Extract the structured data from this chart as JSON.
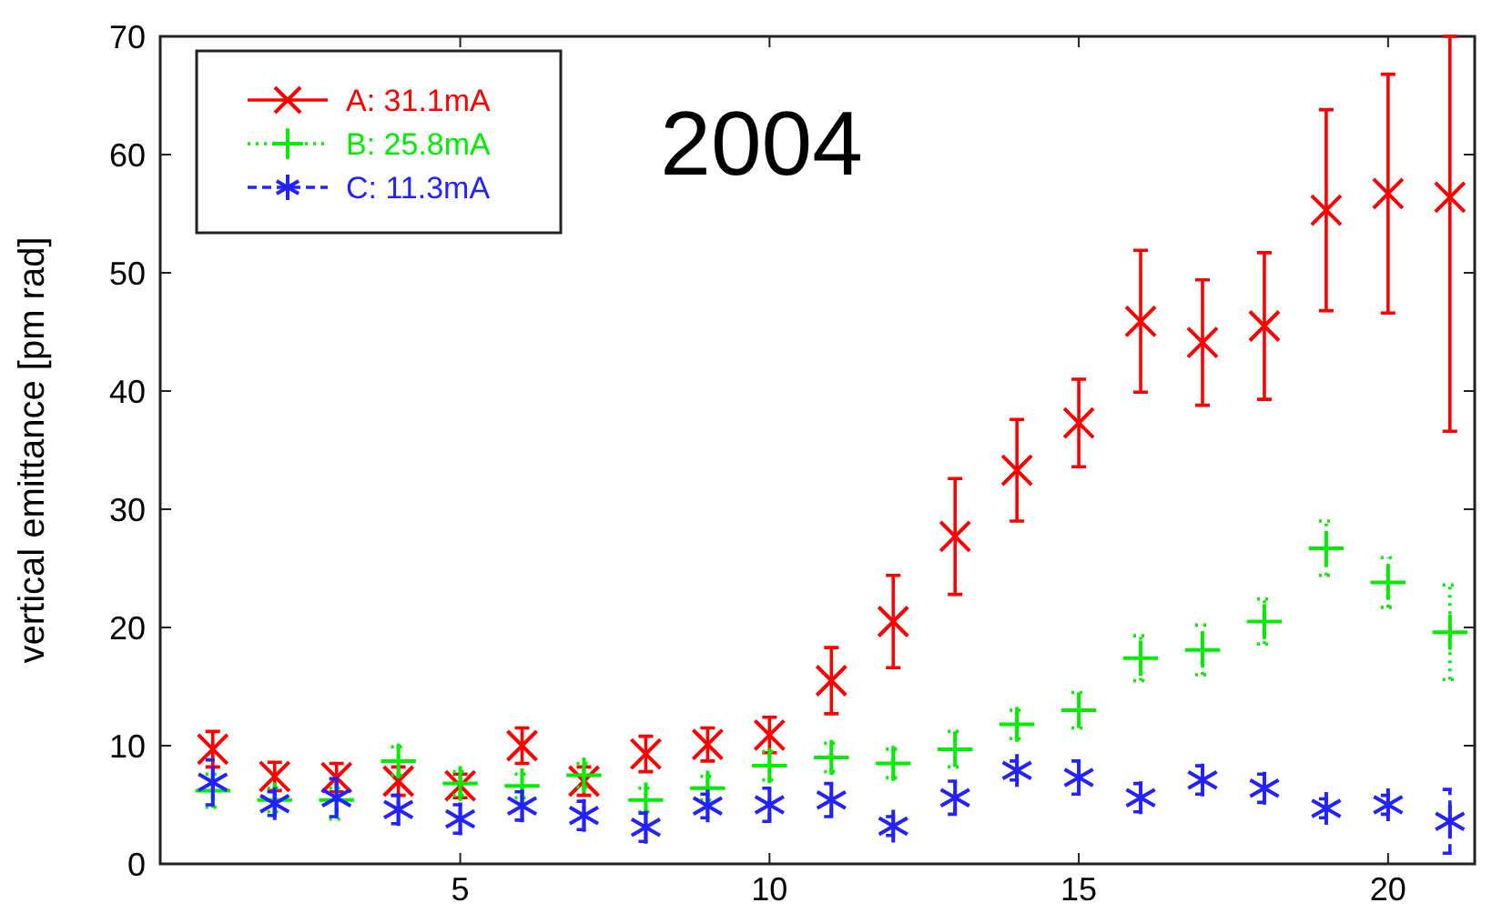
{
  "chart_data": {
    "type": "scatter",
    "title": "2004",
    "ylabel": "vertical emittance [pm rad]",
    "x": [
      1,
      2,
      3,
      4,
      5,
      6,
      7,
      8,
      9,
      10,
      11,
      12,
      13,
      14,
      15,
      16,
      17,
      18,
      19,
      20,
      21
    ],
    "xlim": [
      0.15,
      21.4
    ],
    "xticks": [
      5,
      10,
      15,
      20
    ],
    "ylim": [
      0,
      70
    ],
    "yticks": [
      0,
      10,
      20,
      30,
      40,
      50,
      60,
      70
    ],
    "grid": false,
    "legend": "top left",
    "series": [
      {
        "name": "A: 31.1mA",
        "color": "#ff0000",
        "marker": "cross",
        "line_style": "solid",
        "values": [
          9.7,
          7.4,
          7.3,
          7.0,
          6.6,
          10.0,
          7.0,
          9.3,
          10.1,
          10.9,
          15.5,
          20.5,
          27.7,
          33.3,
          37.3,
          45.9,
          44.1,
          45.5,
          55.3,
          56.7,
          56.4
        ],
        "errors": [
          1.5,
          1.2,
          1.2,
          1.2,
          1.0,
          1.5,
          1.2,
          1.5,
          1.4,
          1.5,
          2.8,
          3.9,
          4.9,
          4.3,
          3.7,
          6.0,
          5.3,
          6.2,
          8.5,
          10.1,
          [
            36.6,
            70
          ]
        ]
      },
      {
        "name": "B: 25.8mA",
        "color": "#00ee00",
        "marker": "plus",
        "line_style": "dotted",
        "values": [
          6.2,
          5.4,
          5.4,
          8.7,
          6.8,
          6.6,
          7.5,
          5.4,
          6.4,
          8.3,
          9.0,
          8.5,
          9.7,
          11.8,
          13.0,
          17.4,
          18.1,
          20.5,
          26.7,
          23.8,
          19.6
        ],
        "errors": [
          1.4,
          1.0,
          [
            3.8,
            6.4
          ],
          1.2,
          1.0,
          1.0,
          1.0,
          1.0,
          1.0,
          1.2,
          1.2,
          1.2,
          1.5,
          1.2,
          1.5,
          1.9,
          2.1,
          1.9,
          2.3,
          2.1,
          4.0
        ]
      },
      {
        "name": "C: 11.3mA",
        "color": "#2222ff",
        "line_style": "dashed",
        "values": [
          6.9,
          5.1,
          5.6,
          4.6,
          3.8,
          4.9,
          4.1,
          3.1,
          4.9,
          5.0,
          5.4,
          3.2,
          5.6,
          7.9,
          7.3,
          5.6,
          7.1,
          6.4,
          4.7,
          5.0,
          3.6
        ],
        "errors": [
          1.9,
          1.0,
          1.6,
          1.2,
          1.2,
          1.2,
          1.2,
          1.2,
          1.0,
          1.4,
          1.4,
          0.8,
          1.4,
          0.8,
          1.4,
          1.2,
          1.2,
          1.2,
          0.8,
          0.8,
          2.7
        ]
      }
    ]
  }
}
